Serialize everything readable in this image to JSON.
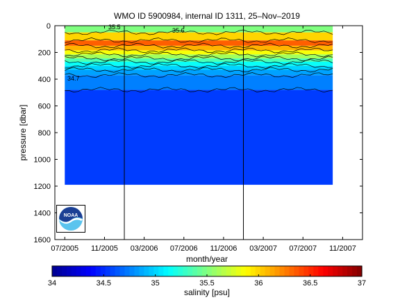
{
  "chart_data": {
    "type": "heatmap",
    "title": "WMO ID 5900984, internal ID 1311, 25–Nov–2019",
    "xlabel": "month/year",
    "ylabel": "pressure [dbar]",
    "colorbar_label": "salinity [psu]",
    "x_ticks": [
      "07/2005",
      "11/2005",
      "03/2006",
      "07/2006",
      "11/2006",
      "03/2007",
      "07/2007",
      "11/2007"
    ],
    "x_range": [
      "2005-06",
      "2008-01"
    ],
    "y_ticks": [
      "0",
      "200",
      "400",
      "600",
      "800",
      "1000",
      "1200",
      "1400",
      "1600"
    ],
    "y_range": [
      0,
      1600
    ],
    "y_reversed": true,
    "colorbar_ticks": [
      "34",
      "34.5",
      "35",
      "35.5",
      "36",
      "36.5",
      "37"
    ],
    "colorbar_range": [
      34,
      37
    ],
    "colormap": [
      "#00008f",
      "#0000ff",
      "#0080ff",
      "#00ffff",
      "#80ff80",
      "#ffff00",
      "#ff8000",
      "#ff0000",
      "#800000"
    ],
    "profile_layers": [
      {
        "bottom_pressure": 50,
        "salinity_psu": 35.5
      },
      {
        "bottom_pressure": 110,
        "salinity_psu": 36.0
      },
      {
        "bottom_pressure": 150,
        "salinity_psu": 36.35
      },
      {
        "bottom_pressure": 185,
        "salinity_psu": 36.1
      },
      {
        "bottom_pressure": 215,
        "salinity_psu": 35.85
      },
      {
        "bottom_pressure": 245,
        "salinity_psu": 35.6
      },
      {
        "bottom_pressure": 270,
        "salinity_psu": 35.35
      },
      {
        "bottom_pressure": 300,
        "salinity_psu": 35.15
      },
      {
        "bottom_pressure": 330,
        "salinity_psu": 35.0
      },
      {
        "bottom_pressure": 370,
        "salinity_psu": 34.85
      },
      {
        "bottom_pressure": 480,
        "salinity_psu": 34.75
      },
      {
        "bottom_pressure": 1190,
        "salinity_psu": 34.55
      }
    ],
    "contour_labels": [
      "35.5",
      "35.6",
      "34.7"
    ],
    "year_boundaries": [
      "2006-01",
      "2007-01",
      "2008-01"
    ],
    "data_span": [
      "2005-07",
      "2007-10"
    ],
    "logo": "noaa-logo"
  }
}
